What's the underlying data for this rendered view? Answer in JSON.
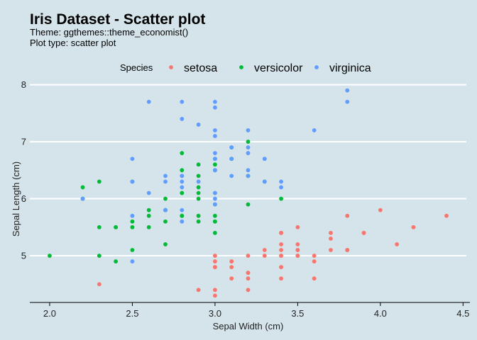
{
  "chart_data": {
    "type": "scatter",
    "title": "Iris Dataset - Scatter plot",
    "subtitle_lines": [
      "Theme: ggthemes::theme_economist()",
      "Plot type: scatter plot"
    ],
    "xlabel": "Sepal Width (cm)",
    "ylabel": "Sepal Length (cm)",
    "xlim": [
      1.88,
      4.52
    ],
    "ylim": [
      4.18,
      8.02
    ],
    "x_ticks": [
      2.0,
      2.5,
      3.0,
      3.5,
      4.0,
      4.5
    ],
    "x_tick_labels": [
      "2.0",
      "2.5",
      "3.0",
      "3.5",
      "4.0",
      "4.5"
    ],
    "y_ticks": [
      5,
      6,
      7,
      8
    ],
    "y_tick_labels": [
      "5",
      "6",
      "7",
      "8"
    ],
    "grid": "horizontal",
    "legend": {
      "title": "Species",
      "placement": "top"
    },
    "series": [
      {
        "name": "setosa",
        "color": "#f8766d",
        "points": [
          [
            3.5,
            5.1
          ],
          [
            3.0,
            4.9
          ],
          [
            3.2,
            4.7
          ],
          [
            3.1,
            4.6
          ],
          [
            3.6,
            5.0
          ],
          [
            3.9,
            5.4
          ],
          [
            3.4,
            4.6
          ],
          [
            3.4,
            5.0
          ],
          [
            2.9,
            4.4
          ],
          [
            3.1,
            4.9
          ],
          [
            3.7,
            5.4
          ],
          [
            3.4,
            4.8
          ],
          [
            3.0,
            4.8
          ],
          [
            3.0,
            4.3
          ],
          [
            4.0,
            5.8
          ],
          [
            4.4,
            5.7
          ],
          [
            3.9,
            5.4
          ],
          [
            3.5,
            5.1
          ],
          [
            3.8,
            5.7
          ],
          [
            3.8,
            5.1
          ],
          [
            3.4,
            5.4
          ],
          [
            3.7,
            5.1
          ],
          [
            3.6,
            4.6
          ],
          [
            3.3,
            5.1
          ],
          [
            3.4,
            4.8
          ],
          [
            3.0,
            5.0
          ],
          [
            3.4,
            5.0
          ],
          [
            3.5,
            5.2
          ],
          [
            3.4,
            5.2
          ],
          [
            3.2,
            4.7
          ],
          [
            3.1,
            4.8
          ],
          [
            3.4,
            5.4
          ],
          [
            4.1,
            5.2
          ],
          [
            4.2,
            5.5
          ],
          [
            3.1,
            4.9
          ],
          [
            3.2,
            5.0
          ],
          [
            3.5,
            5.5
          ],
          [
            3.6,
            4.9
          ],
          [
            3.0,
            4.4
          ],
          [
            3.4,
            5.1
          ],
          [
            3.5,
            5.0
          ],
          [
            2.3,
            4.5
          ],
          [
            3.2,
            4.4
          ],
          [
            3.5,
            5.0
          ],
          [
            3.8,
            5.1
          ],
          [
            3.0,
            4.8
          ],
          [
            3.8,
            5.1
          ],
          [
            3.2,
            4.6
          ],
          [
            3.7,
            5.3
          ],
          [
            3.3,
            5.0
          ]
        ]
      },
      {
        "name": "versicolor",
        "color": "#00ba38",
        "points": [
          [
            3.2,
            7.0
          ],
          [
            3.2,
            6.4
          ],
          [
            3.1,
            6.9
          ],
          [
            2.3,
            5.5
          ],
          [
            2.8,
            6.5
          ],
          [
            2.8,
            5.7
          ],
          [
            3.3,
            6.3
          ],
          [
            2.4,
            4.9
          ],
          [
            2.9,
            6.6
          ],
          [
            2.7,
            5.2
          ],
          [
            2.0,
            5.0
          ],
          [
            3.0,
            5.9
          ],
          [
            2.2,
            6.0
          ],
          [
            2.9,
            6.1
          ],
          [
            2.9,
            5.6
          ],
          [
            3.1,
            6.7
          ],
          [
            3.0,
            5.6
          ],
          [
            2.7,
            5.8
          ],
          [
            2.2,
            6.2
          ],
          [
            2.5,
            5.6
          ],
          [
            3.2,
            5.9
          ],
          [
            2.8,
            6.1
          ],
          [
            2.5,
            6.3
          ],
          [
            2.8,
            6.1
          ],
          [
            2.9,
            6.4
          ],
          [
            3.0,
            6.6
          ],
          [
            2.8,
            6.8
          ],
          [
            3.0,
            6.7
          ],
          [
            2.9,
            6.0
          ],
          [
            2.6,
            5.7
          ],
          [
            2.4,
            5.5
          ],
          [
            2.4,
            5.5
          ],
          [
            2.7,
            5.8
          ],
          [
            2.7,
            6.0
          ],
          [
            3.0,
            5.4
          ],
          [
            3.4,
            6.0
          ],
          [
            3.1,
            6.7
          ],
          [
            2.3,
            6.3
          ],
          [
            3.0,
            5.6
          ],
          [
            2.5,
            5.5
          ],
          [
            2.6,
            5.5
          ],
          [
            3.0,
            6.1
          ],
          [
            2.6,
            5.8
          ],
          [
            2.3,
            5.0
          ],
          [
            2.7,
            5.6
          ],
          [
            3.0,
            5.7
          ],
          [
            2.9,
            5.7
          ],
          [
            2.9,
            6.2
          ],
          [
            2.5,
            5.1
          ],
          [
            2.8,
            5.7
          ]
        ]
      },
      {
        "name": "virginica",
        "color": "#619cff",
        "points": [
          [
            3.3,
            6.3
          ],
          [
            2.7,
            5.8
          ],
          [
            3.0,
            7.1
          ],
          [
            2.9,
            6.3
          ],
          [
            3.0,
            6.5
          ],
          [
            3.0,
            7.6
          ],
          [
            2.5,
            4.9
          ],
          [
            2.9,
            7.3
          ],
          [
            2.5,
            6.7
          ],
          [
            3.6,
            7.2
          ],
          [
            3.2,
            6.5
          ],
          [
            2.7,
            6.4
          ],
          [
            3.0,
            6.8
          ],
          [
            2.5,
            5.7
          ],
          [
            2.8,
            5.8
          ],
          [
            3.2,
            6.4
          ],
          [
            3.0,
            6.5
          ],
          [
            3.8,
            7.7
          ],
          [
            2.6,
            7.7
          ],
          [
            2.2,
            6.0
          ],
          [
            3.2,
            6.9
          ],
          [
            2.8,
            5.6
          ],
          [
            2.8,
            7.7
          ],
          [
            2.7,
            6.3
          ],
          [
            3.3,
            6.7
          ],
          [
            3.2,
            7.2
          ],
          [
            2.8,
            6.2
          ],
          [
            3.0,
            6.1
          ],
          [
            2.8,
            6.4
          ],
          [
            3.0,
            7.2
          ],
          [
            2.8,
            7.4
          ],
          [
            3.8,
            7.9
          ],
          [
            2.8,
            6.4
          ],
          [
            2.8,
            6.3
          ],
          [
            2.6,
            6.1
          ],
          [
            3.0,
            7.7
          ],
          [
            3.4,
            6.3
          ],
          [
            3.1,
            6.4
          ],
          [
            3.0,
            6.0
          ],
          [
            3.1,
            6.9
          ],
          [
            3.1,
            6.7
          ],
          [
            3.1,
            6.9
          ],
          [
            2.7,
            5.8
          ],
          [
            3.2,
            6.8
          ],
          [
            3.3,
            6.7
          ],
          [
            3.0,
            6.7
          ],
          [
            2.5,
            6.3
          ],
          [
            3.0,
            6.5
          ],
          [
            3.4,
            6.2
          ],
          [
            3.0,
            5.9
          ]
        ]
      }
    ]
  }
}
